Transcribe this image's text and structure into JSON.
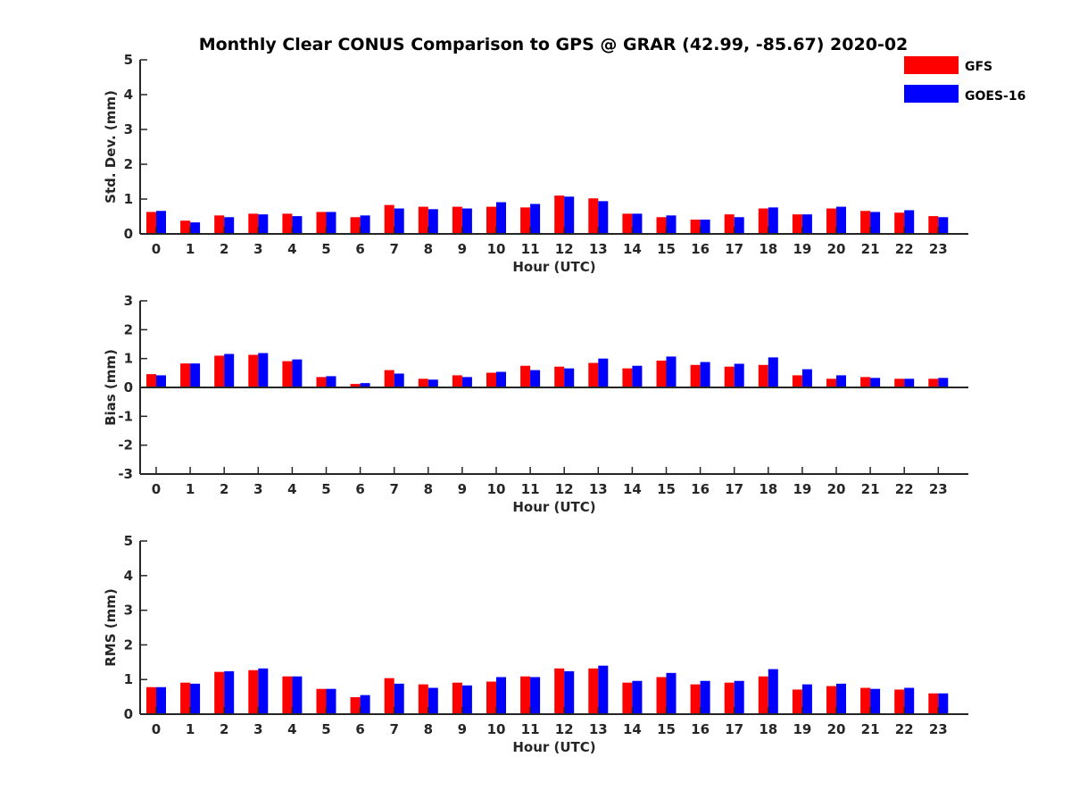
{
  "title": "Monthly Clear CONUS Comparison to GPS @ GRAR (42.99, -85.67) 2020-02",
  "legend": [
    {
      "name": "GFS",
      "color": "#ff0000"
    },
    {
      "name": "GOES-16",
      "color": "#0000ff"
    }
  ],
  "chart_data": [
    {
      "type": "bar",
      "title": "Monthly Clear CONUS Comparison to GPS @ GRAR (42.99, -85.67) 2020-02",
      "xlabel": "Hour (UTC)",
      "ylabel": "Std. Dev. (mm)",
      "ylim": [
        0,
        5
      ],
      "yticks": [
        "0",
        "1",
        "2",
        "3",
        "4",
        "5"
      ],
      "categories": [
        "0",
        "1",
        "2",
        "3",
        "4",
        "5",
        "6",
        "7",
        "8",
        "9",
        "10",
        "11",
        "12",
        "13",
        "14",
        "15",
        "16",
        "17",
        "18",
        "19",
        "20",
        "21",
        "22",
        "23"
      ],
      "series": [
        {
          "name": "GFS",
          "color": "#ff0000",
          "values": [
            0.63,
            0.38,
            0.53,
            0.58,
            0.58,
            0.63,
            0.48,
            0.83,
            0.78,
            0.78,
            0.78,
            0.76,
            1.1,
            1.02,
            0.58,
            0.48,
            0.41,
            0.56,
            0.73,
            0.56,
            0.73,
            0.66,
            0.61,
            0.51
          ]
        },
        {
          "name": "GOES-16",
          "color": "#0000ff",
          "values": [
            0.66,
            0.33,
            0.48,
            0.56,
            0.51,
            0.63,
            0.53,
            0.73,
            0.71,
            0.73,
            0.91,
            0.86,
            1.07,
            0.94,
            0.58,
            0.53,
            0.41,
            0.48,
            0.76,
            0.56,
            0.78,
            0.63,
            0.68,
            0.48
          ]
        }
      ]
    },
    {
      "type": "bar",
      "xlabel": "Hour (UTC)",
      "ylabel": "Bias (mm)",
      "ylim": [
        -3,
        3
      ],
      "yticks": [
        "-3",
        "-2",
        "-1",
        "0",
        "1",
        "2",
        "3"
      ],
      "categories": [
        "0",
        "1",
        "2",
        "3",
        "4",
        "5",
        "6",
        "7",
        "8",
        "9",
        "10",
        "11",
        "12",
        "13",
        "14",
        "15",
        "16",
        "17",
        "18",
        "19",
        "20",
        "21",
        "22",
        "23"
      ],
      "series": [
        {
          "name": "GFS",
          "color": "#ff0000",
          "values": [
            0.46,
            0.83,
            1.1,
            1.13,
            0.91,
            0.36,
            0.12,
            0.6,
            0.3,
            0.42,
            0.51,
            0.75,
            0.72,
            0.85,
            0.66,
            0.93,
            0.78,
            0.72,
            0.78,
            0.42,
            0.3,
            0.36,
            0.3,
            0.3
          ]
        },
        {
          "name": "GOES-16",
          "color": "#0000ff",
          "values": [
            0.42,
            0.83,
            1.16,
            1.19,
            0.97,
            0.39,
            0.15,
            0.48,
            0.27,
            0.36,
            0.54,
            0.6,
            0.66,
            1.0,
            0.75,
            1.07,
            0.88,
            0.82,
            1.04,
            0.63,
            0.42,
            0.33,
            0.3,
            0.33
          ]
        }
      ]
    },
    {
      "type": "bar",
      "xlabel": "Hour (UTC)",
      "ylabel": "RMS (mm)",
      "ylim": [
        0,
        5
      ],
      "yticks": [
        "0",
        "1",
        "2",
        "3",
        "4",
        "5"
      ],
      "categories": [
        "0",
        "1",
        "2",
        "3",
        "4",
        "5",
        "6",
        "7",
        "8",
        "9",
        "10",
        "11",
        "12",
        "13",
        "14",
        "15",
        "16",
        "17",
        "18",
        "19",
        "20",
        "21",
        "22",
        "23"
      ],
      "series": [
        {
          "name": "GFS",
          "color": "#ff0000",
          "values": [
            0.78,
            0.91,
            1.22,
            1.27,
            1.09,
            0.73,
            0.49,
            1.04,
            0.86,
            0.91,
            0.94,
            1.09,
            1.32,
            1.32,
            0.91,
            1.07,
            0.86,
            0.91,
            1.09,
            0.71,
            0.81,
            0.76,
            0.71,
            0.6
          ]
        },
        {
          "name": "GOES-16",
          "color": "#0000ff",
          "values": [
            0.78,
            0.88,
            1.24,
            1.32,
            1.09,
            0.73,
            0.55,
            0.88,
            0.76,
            0.83,
            1.07,
            1.07,
            1.24,
            1.4,
            0.96,
            1.19,
            0.96,
            0.96,
            1.3,
            0.86,
            0.88,
            0.73,
            0.76,
            0.6
          ]
        }
      ]
    }
  ]
}
